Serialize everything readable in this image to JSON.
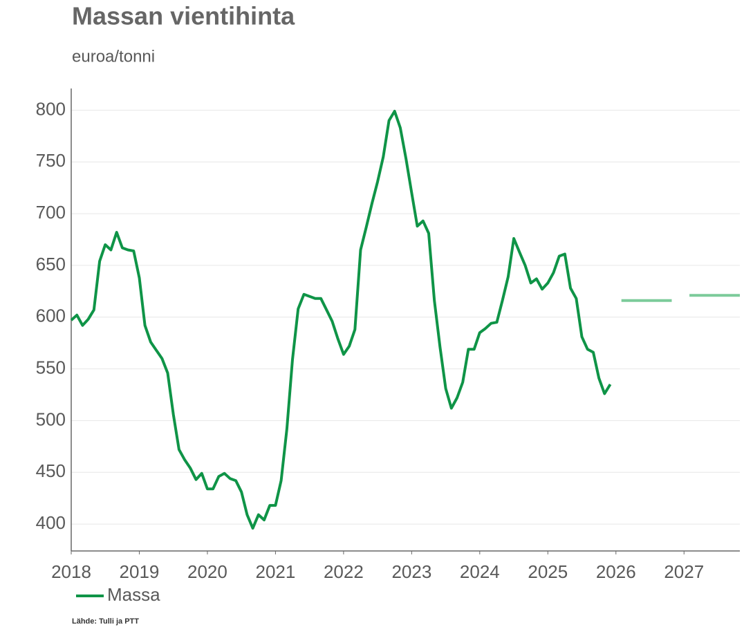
{
  "chart_data": {
    "type": "line",
    "title": "Massan vientihinta",
    "subtitle": "euroa/tonni",
    "source": "Lähde: Tulli ja PTT",
    "series": [
      {
        "name": "Massa",
        "color": "#0f9447",
        "x": [
          2018,
          2018.083,
          2018.167,
          2018.25,
          2018.333,
          2018.417,
          2018.5,
          2018.583,
          2018.667,
          2018.75,
          2018.833,
          2018.917,
          2019,
          2019.083,
          2019.167,
          2019.25,
          2019.333,
          2019.417,
          2019.5,
          2019.583,
          2019.667,
          2019.75,
          2019.833,
          2019.917,
          2020,
          2020.083,
          2020.167,
          2020.25,
          2020.333,
          2020.417,
          2020.5,
          2020.583,
          2020.667,
          2020.75,
          2020.833,
          2020.917,
          2021,
          2021.083,
          2021.167,
          2021.25,
          2021.333,
          2021.417,
          2021.5,
          2021.583,
          2021.667,
          2021.75,
          2021.833,
          2021.917,
          2022,
          2022.083,
          2022.167,
          2022.25,
          2022.333,
          2022.417,
          2022.5,
          2022.583,
          2022.667,
          2022.75,
          2022.833,
          2022.917,
          2023,
          2023.083,
          2023.167,
          2023.25,
          2023.333,
          2023.417,
          2023.5,
          2023.583,
          2023.667,
          2023.75,
          2023.833,
          2023.917,
          2024,
          2024.083,
          2024.167,
          2024.25,
          2024.333,
          2024.417,
          2024.5,
          2024.583,
          2024.667,
          2024.75,
          2024.833,
          2024.917,
          2025,
          2025.083,
          2025.167,
          2025.25,
          2025.333,
          2025.417,
          2025.5,
          2025.583,
          2025.667,
          2025.75,
          2025.833,
          2025.917
        ],
        "values": [
          597,
          602,
          592,
          598,
          607,
          654,
          670,
          665,
          682,
          667,
          665,
          664,
          638,
          592,
          576,
          568,
          560,
          546,
          506,
          472,
          462,
          454,
          443,
          449,
          434,
          434,
          446,
          449,
          444,
          442,
          431,
          409,
          396,
          409,
          404,
          418,
          418,
          442,
          492,
          559,
          608,
          622,
          620,
          618,
          618,
          607,
          596,
          579,
          564,
          572,
          588,
          665,
          687,
          710,
          731,
          755,
          790,
          799,
          783,
          753,
          720,
          688,
          693,
          681,
          616,
          571,
          531,
          512,
          522,
          537,
          569,
          569,
          585,
          589,
          594,
          595,
          616,
          639,
          676,
          663,
          650,
          633,
          637,
          627,
          633,
          643,
          659,
          661,
          628,
          618,
          581,
          569,
          566,
          541,
          526,
          535
        ]
      },
      {
        "color": "#7ccb9a",
        "x": [
          2026.08,
          2026.82,
          2026.9,
          2027.08,
          2027.82
        ],
        "values": [
          616,
          616,
          null,
          621,
          621
        ]
      }
    ],
    "xlim": [
      2018,
      2027.82
    ],
    "xticks": [
      2018,
      2019,
      2020,
      2021,
      2022,
      2023,
      2024,
      2025,
      2026,
      2027
    ],
    "ylim": [
      374,
      821
    ],
    "yticks": [
      400,
      450,
      500,
      550,
      600,
      650,
      700,
      750,
      800
    ],
    "grid": true,
    "legend": "bottom-left"
  }
}
